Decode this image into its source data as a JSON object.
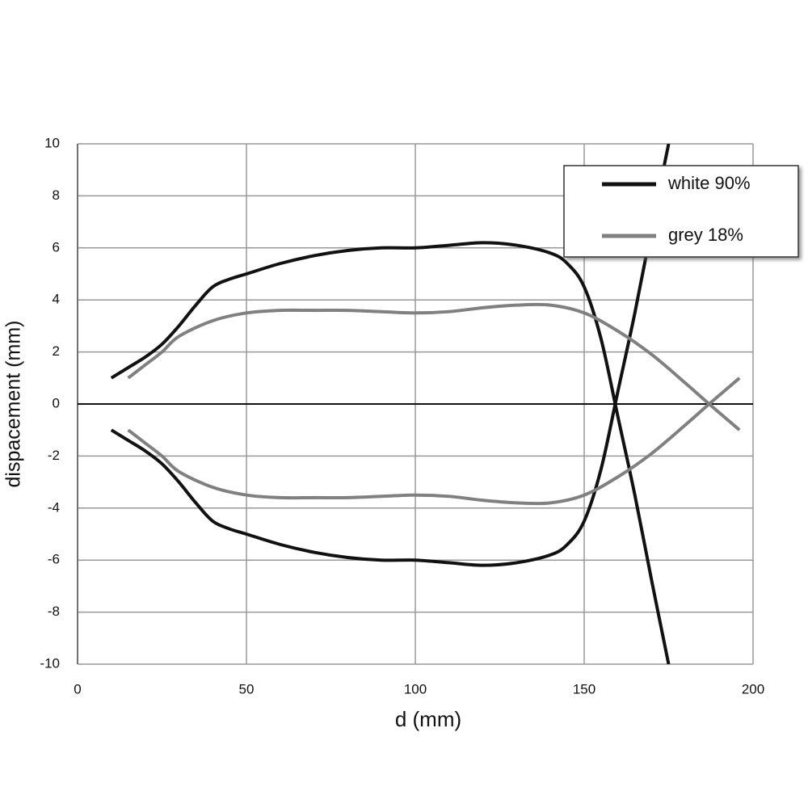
{
  "chart_data": {
    "type": "line",
    "x_label": "d (mm)",
    "y_label": "dispacement (mm)",
    "xlim": [
      0,
      200
    ],
    "xticks": [
      0,
      50,
      100,
      150,
      200
    ],
    "ylim": [
      -10,
      10
    ],
    "yticks": [
      -10,
      -8,
      -6,
      -4,
      -2,
      0,
      2,
      4,
      6,
      8,
      10
    ],
    "grid": true,
    "legend_position": "upper right",
    "series": [
      {
        "name": "white 90%",
        "color": "#111111",
        "x": [
          10,
          15,
          20,
          25,
          30,
          35,
          40,
          45,
          50,
          60,
          70,
          80,
          90,
          100,
          110,
          120,
          130,
          140,
          145,
          150,
          155,
          160,
          165,
          170,
          175
        ],
        "values": [
          1.0,
          1.4,
          1.8,
          2.3,
          3.0,
          3.8,
          4.5,
          4.8,
          5.0,
          5.4,
          5.7,
          5.9,
          6.0,
          6.0,
          6.1,
          6.2,
          6.1,
          5.8,
          5.4,
          4.5,
          2.5,
          -0.5,
          -3.5,
          -6.8,
          -10.0
        ]
      },
      {
        "color": "#111111",
        "x": [
          10,
          15,
          20,
          25,
          30,
          35,
          40,
          45,
          50,
          60,
          70,
          80,
          90,
          100,
          110,
          120,
          130,
          140,
          145,
          150,
          155,
          160,
          165,
          170,
          175
        ],
        "values": [
          -1.0,
          -1.4,
          -1.8,
          -2.3,
          -3.0,
          -3.8,
          -4.5,
          -4.8,
          -5.0,
          -5.4,
          -5.7,
          -5.9,
          -6.0,
          -6.0,
          -6.1,
          -6.2,
          -6.1,
          -5.8,
          -5.4,
          -4.5,
          -2.5,
          0.5,
          3.5,
          6.8,
          10.0
        ]
      },
      {
        "name": "grey 18%",
        "color": "#808080",
        "x": [
          15,
          20,
          25,
          30,
          40,
          50,
          60,
          70,
          80,
          90,
          100,
          110,
          120,
          130,
          140,
          150,
          160,
          170,
          180,
          187,
          196
        ],
        "values": [
          1.0,
          1.5,
          2.0,
          2.6,
          3.2,
          3.5,
          3.6,
          3.6,
          3.6,
          3.55,
          3.5,
          3.55,
          3.7,
          3.8,
          3.8,
          3.5,
          2.8,
          1.9,
          0.8,
          0.0,
          -1.0
        ]
      },
      {
        "color": "#808080",
        "x": [
          15,
          20,
          25,
          30,
          40,
          50,
          60,
          70,
          80,
          90,
          100,
          110,
          120,
          130,
          140,
          150,
          160,
          170,
          180,
          187,
          196
        ],
        "values": [
          -1.0,
          -1.5,
          -2.0,
          -2.6,
          -3.2,
          -3.5,
          -3.6,
          -3.6,
          -3.6,
          -3.55,
          -3.5,
          -3.55,
          -3.7,
          -3.8,
          -3.8,
          -3.5,
          -2.8,
          -1.9,
          -0.8,
          0.0,
          1.0
        ]
      }
    ]
  }
}
